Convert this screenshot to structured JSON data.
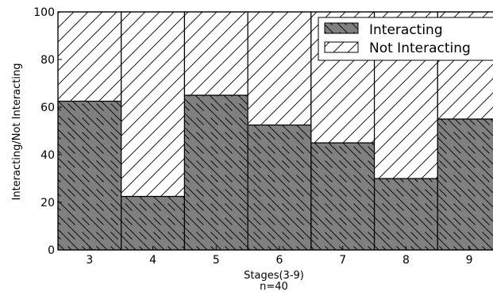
{
  "chart_data": {
    "type": "bar",
    "stacked": true,
    "categories": [
      "3",
      "4",
      "5",
      "6",
      "7",
      "8",
      "9"
    ],
    "series": [
      {
        "name": "Interacting",
        "values": [
          62.5,
          22.5,
          65,
          52.5,
          45,
          30,
          55
        ],
        "color": "#808080",
        "hatch": "backslash"
      },
      {
        "name": "Not Interacting",
        "values": [
          37.5,
          77.5,
          35,
          47.5,
          55,
          70,
          45
        ],
        "color": "#ffffff",
        "hatch": "slash"
      }
    ],
    "xlabel": "Stages(3-9)",
    "xlabel_sub": "n=40",
    "ylabel": "Interacting/Not Interacting",
    "ylim": [
      0,
      100
    ],
    "yticks": [
      "0",
      "20",
      "40",
      "60",
      "80",
      "100"
    ],
    "legend_position": "top-right",
    "grid": false
  }
}
